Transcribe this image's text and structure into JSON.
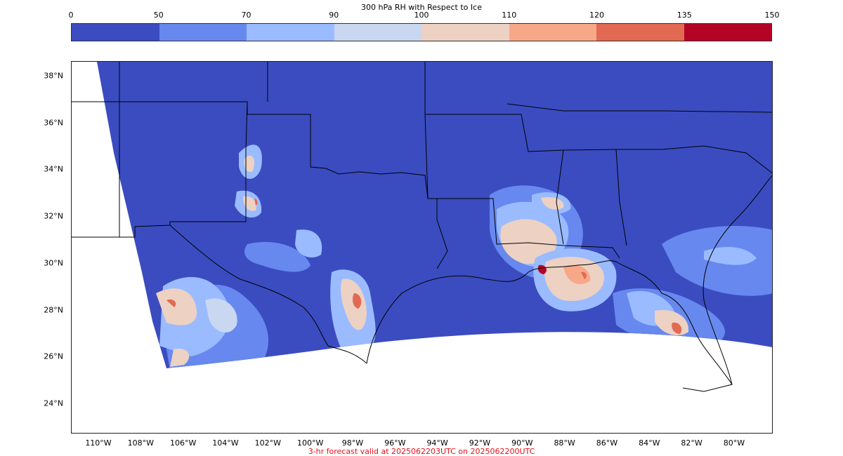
{
  "colorbar": {
    "title": "300 hPa RH with Respect to Ice",
    "ticks": [
      "0",
      "50",
      "70",
      "90",
      "100",
      "110",
      "120",
      "135",
      "150"
    ],
    "colors": [
      "#3b4cc0",
      "#6788ee",
      "#9abbff",
      "#c9d7f0",
      "#edd1c2",
      "#f7a889",
      "#e26952",
      "#b40426"
    ]
  },
  "map": {
    "lat_labels": [
      "38°N",
      "36°N",
      "34°N",
      "32°N",
      "30°N",
      "28°N",
      "26°N",
      "24°N"
    ],
    "lon_labels": [
      "110°W",
      "108°W",
      "106°W",
      "104°W",
      "102°W",
      "100°W",
      "98°W",
      "96°W",
      "94°W",
      "92°W",
      "90°W",
      "88°W",
      "86°W",
      "84°W",
      "82°W",
      "80°W"
    ],
    "field_base_color": "#3b4cc0",
    "moist_areas": [
      {
        "name": "west-texas-gulf",
        "lat": 28.0,
        "lon": -105.6,
        "rh": 100
      },
      {
        "name": "south-texas",
        "lat": 28.4,
        "lon": -98.0,
        "rh": 110
      },
      {
        "name": "mississippi-delta",
        "lat": 30.6,
        "lon": -89.8,
        "rh": 100
      },
      {
        "name": "mobile-gulf",
        "lat": 29.3,
        "lon": -87.6,
        "rh": 110
      },
      {
        "name": "tampa-gulf",
        "lat": 27.5,
        "lon": -83.4,
        "rh": 110
      },
      {
        "name": "new-mexico",
        "lat": 34.2,
        "lon": -102.8,
        "rh": 100
      }
    ]
  },
  "footer": {
    "valid_text": "3-hr forecast valid at 2025062203UTC on 2025062200UTC"
  }
}
